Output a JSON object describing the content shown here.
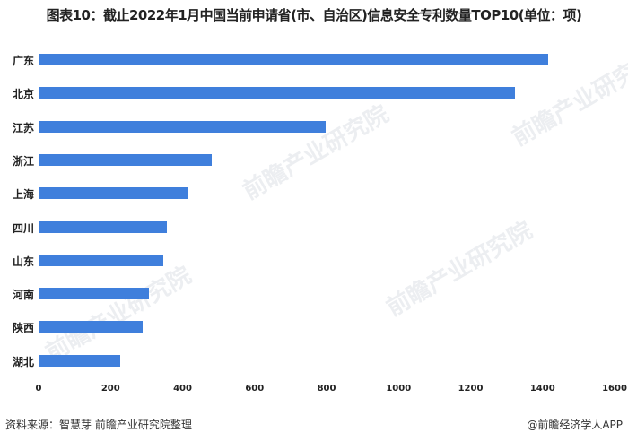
{
  "title": "图表10：截止2022年1月中国当前申请省(市、自治区)信息安全专利数量TOP10(单位：项)",
  "source": "资料来源：智慧芽 前瞻产业研究院整理",
  "credit": "@前瞻经济学人APP",
  "watermark": "前瞻产业研究院",
  "bar_color": "#3f7fdc",
  "chart_data": {
    "type": "bar",
    "orientation": "horizontal",
    "title": "图表10：截止2022年1月中国当前申请省(市、自治区)信息安全专利数量TOP10(单位：项)",
    "xlabel": "",
    "ylabel": "",
    "categories": [
      "广东",
      "北京",
      "江苏",
      "浙江",
      "上海",
      "四川",
      "山东",
      "河南",
      "陕西",
      "湖北"
    ],
    "values": [
      1414,
      1321,
      795,
      478,
      414,
      354,
      344,
      304,
      287,
      224
    ],
    "xlim": [
      0,
      1600
    ],
    "xticks": [
      "0",
      "200",
      "400",
      "600",
      "800",
      "1000",
      "1200",
      "1400",
      "1600"
    ],
    "grid": false,
    "legend": "none"
  }
}
